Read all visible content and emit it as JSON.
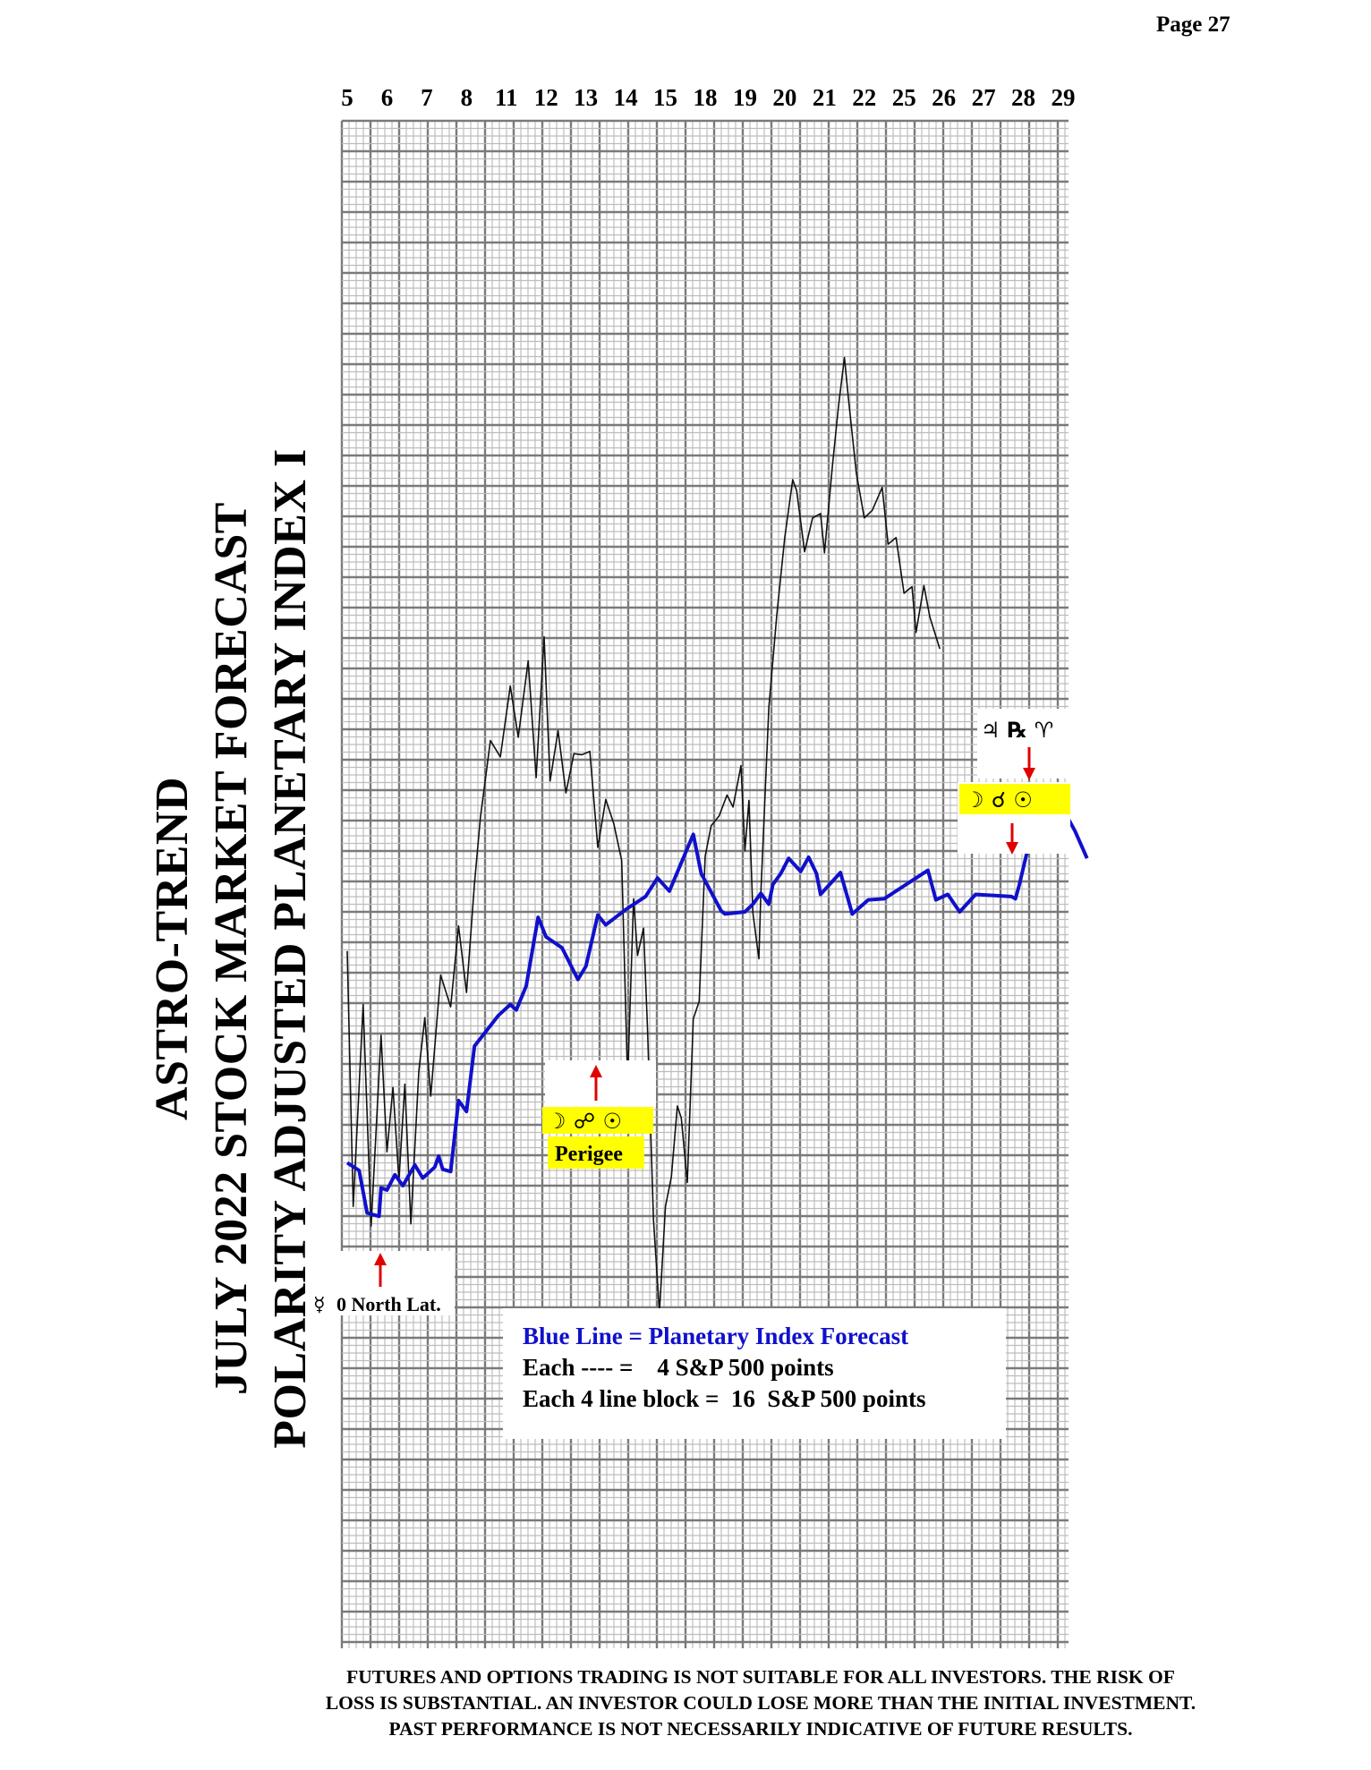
{
  "page": {
    "number_label": "Page  27"
  },
  "title": {
    "lines": [
      "ASTRO-TREND",
      "JULY 2022  STOCK MARKET FORECAST",
      "POLARITY ADJUSTED PLANETARY INDEX I"
    ]
  },
  "legend": {
    "blue_line": "Blue Line = Planetary Index Forecast",
    "each_line": "Each ---- =    4 S&P 500 points",
    "each_block": "Each 4 line block =  16  S&P 500 points"
  },
  "annotations": {
    "mercury": {
      "symbol": "☿",
      "text": "0 North Lat."
    },
    "perigee": {
      "symbols": "☽ ☍ ☉",
      "text": "Perigee"
    },
    "top_right": {
      "top_symbols": "♃ ℞ ♈",
      "bottom_symbols": "☽ ☌ ☉"
    }
  },
  "disclaimer": [
    "FUTURES AND OPTIONS TRADING IS NOT SUITABLE FOR ALL INVESTORS.  THE RISK OF",
    "LOSS IS SUBSTANTIAL.  AN INVESTOR COULD LOSE MORE THAN THE INITIAL INVESTMENT.",
    "PAST PERFORMANCE IS NOT NECESSARILY INDICATIVE OF FUTURE RESULTS."
  ],
  "colors": {
    "forecast_line": "#1010cc",
    "actual_line": "#111111",
    "grid_minor": "#bdbdbd",
    "grid_major": "#7a7a7a",
    "highlight": "#ffff00",
    "arrow": "#e00000"
  },
  "chart_data": {
    "type": "line",
    "x_tick_labels": [
      "5",
      "6",
      "7",
      "8",
      "11",
      "12",
      "13",
      "14",
      "15",
      "18",
      "19",
      "20",
      "21",
      "22",
      "25",
      "26",
      "27",
      "28",
      "29"
    ],
    "y_unit": "relative grid lines; each line = 4 S&P 500 points, each 4-line block = 16 S&P 500 points",
    "ylim": [
      0,
      140
    ],
    "grid": true,
    "series": [
      {
        "name": "Blue Line = Planetary Index Forecast",
        "points": [
          [
            0,
            44.5
          ],
          [
            0.3,
            43.8
          ],
          [
            0.5,
            39.9
          ],
          [
            0.8,
            39.6
          ],
          [
            0.85,
            42.2
          ],
          [
            1.0,
            42.0
          ],
          [
            1.2,
            43.4
          ],
          [
            1.4,
            42.4
          ],
          [
            1.7,
            44.3
          ],
          [
            1.9,
            43.1
          ],
          [
            2.2,
            44.1
          ],
          [
            2.3,
            45.1
          ],
          [
            2.4,
            43.9
          ],
          [
            2.6,
            43.7
          ],
          [
            2.8,
            50.2
          ],
          [
            3.0,
            49.2
          ],
          [
            3.2,
            55.2
          ],
          [
            3.5,
            56.6
          ],
          [
            3.8,
            58.0
          ],
          [
            4.1,
            59.0
          ],
          [
            4.25,
            58.5
          ],
          [
            4.5,
            60.7
          ],
          [
            4.8,
            67.0
          ],
          [
            5.0,
            65.2
          ],
          [
            5.4,
            64.2
          ],
          [
            5.8,
            61.3
          ],
          [
            6.0,
            62.5
          ],
          [
            6.3,
            67.2
          ],
          [
            6.5,
            66.3
          ],
          [
            7.0,
            67.7
          ],
          [
            7.5,
            68.9
          ],
          [
            7.8,
            70.6
          ],
          [
            8.1,
            69.4
          ],
          [
            8.7,
            74.6
          ],
          [
            8.9,
            71.0
          ],
          [
            9.4,
            67.6
          ],
          [
            9.5,
            67.3
          ],
          [
            10.0,
            67.5
          ],
          [
            10.2,
            68.2
          ],
          [
            10.4,
            69.2
          ],
          [
            10.6,
            68.2
          ],
          [
            10.7,
            70.0
          ],
          [
            10.9,
            71.0
          ],
          [
            11.1,
            72.4
          ],
          [
            11.4,
            71.2
          ],
          [
            11.6,
            72.5
          ],
          [
            11.8,
            71.0
          ],
          [
            11.9,
            69.1
          ],
          [
            12.4,
            71.1
          ],
          [
            12.7,
            67.3
          ],
          [
            13.1,
            68.6
          ],
          [
            13.5,
            68.7
          ],
          [
            14.6,
            71.3
          ],
          [
            14.8,
            68.6
          ],
          [
            15.1,
            69.1
          ],
          [
            15.4,
            67.5
          ],
          [
            15.8,
            69.1
          ],
          [
            16.7,
            68.9
          ],
          [
            16.8,
            68.7
          ],
          [
            16.9,
            70.0
          ],
          [
            17.3,
            76.2
          ],
          [
            17.6,
            74.6
          ],
          [
            17.7,
            75.1
          ],
          [
            17.85,
            77.9
          ],
          [
            18.3,
            74.9
          ],
          [
            18.6,
            72.4
          ]
        ]
      }
    ],
    "actual_series_approx": [
      [
        0,
        63.9
      ],
      [
        0.15,
        40.5
      ],
      [
        0.4,
        59.0
      ],
      [
        0.6,
        38.7
      ],
      [
        0.85,
        56.2
      ],
      [
        1.0,
        45.5
      ],
      [
        1.15,
        51.4
      ],
      [
        1.3,
        42.9
      ],
      [
        1.45,
        51.7
      ],
      [
        1.6,
        38.9
      ],
      [
        1.8,
        52.9
      ],
      [
        1.95,
        57.8
      ],
      [
        2.1,
        50.6
      ],
      [
        2.35,
        61.7
      ],
      [
        2.6,
        58.8
      ],
      [
        2.8,
        66.2
      ],
      [
        3.0,
        60.1
      ],
      [
        3.2,
        70.1
      ],
      [
        3.35,
        76.2
      ],
      [
        3.6,
        83.2
      ],
      [
        3.85,
        81.7
      ],
      [
        4.1,
        88.2
      ],
      [
        4.3,
        83.5
      ],
      [
        4.55,
        90.5
      ],
      [
        4.75,
        79.8
      ],
      [
        4.95,
        92.7
      ],
      [
        5.1,
        79.5
      ],
      [
        5.3,
        84.1
      ],
      [
        5.5,
        78.4
      ],
      [
        5.7,
        82.0
      ],
      [
        5.9,
        81.9
      ],
      [
        6.1,
        82.2
      ],
      [
        6.3,
        73.4
      ],
      [
        6.5,
        77.8
      ],
      [
        6.7,
        75.6
      ],
      [
        6.9,
        72.2
      ],
      [
        7.05,
        52.0
      ],
      [
        7.2,
        68.7
      ],
      [
        7.3,
        63.5
      ],
      [
        7.45,
        66.0
      ],
      [
        7.55,
        56.7
      ],
      [
        7.7,
        39.3
      ],
      [
        7.85,
        30.8
      ],
      [
        8.0,
        40.5
      ],
      [
        8.15,
        43.2
      ],
      [
        8.3,
        49.7
      ],
      [
        8.4,
        48.6
      ],
      [
        8.55,
        42.7
      ],
      [
        8.7,
        57.7
      ],
      [
        8.85,
        59.3
      ],
      [
        9.0,
        72.6
      ],
      [
        9.15,
        75.4
      ],
      [
        9.35,
        76.3
      ],
      [
        9.55,
        78.2
      ],
      [
        9.7,
        77.1
      ],
      [
        9.9,
        80.9
      ],
      [
        10.0,
        73.1
      ],
      [
        10.1,
        77.7
      ],
      [
        10.2,
        67.4
      ],
      [
        10.35,
        63.2
      ],
      [
        10.4,
        69.2
      ],
      [
        10.6,
        86.2
      ],
      [
        10.8,
        94.7
      ],
      [
        11.0,
        101.8
      ],
      [
        11.2,
        107.1
      ],
      [
        11.3,
        106.1
      ],
      [
        11.5,
        100.5
      ],
      [
        11.7,
        103.6
      ],
      [
        11.9,
        104.0
      ],
      [
        12.0,
        100.4
      ],
      [
        12.2,
        108.4
      ],
      [
        12.35,
        113.8
      ],
      [
        12.5,
        118.3
      ],
      [
        12.6,
        114.6
      ],
      [
        12.8,
        107.7
      ],
      [
        13.0,
        103.6
      ],
      [
        13.2,
        104.3
      ],
      [
        13.45,
        106.4
      ],
      [
        13.6,
        101.2
      ],
      [
        13.8,
        101.8
      ],
      [
        14.0,
        96.7
      ],
      [
        14.2,
        97.3
      ],
      [
        14.3,
        93.1
      ],
      [
        14.5,
        97.4
      ],
      [
        14.65,
        94.5
      ],
      [
        14.9,
        91.6
      ]
    ]
  }
}
